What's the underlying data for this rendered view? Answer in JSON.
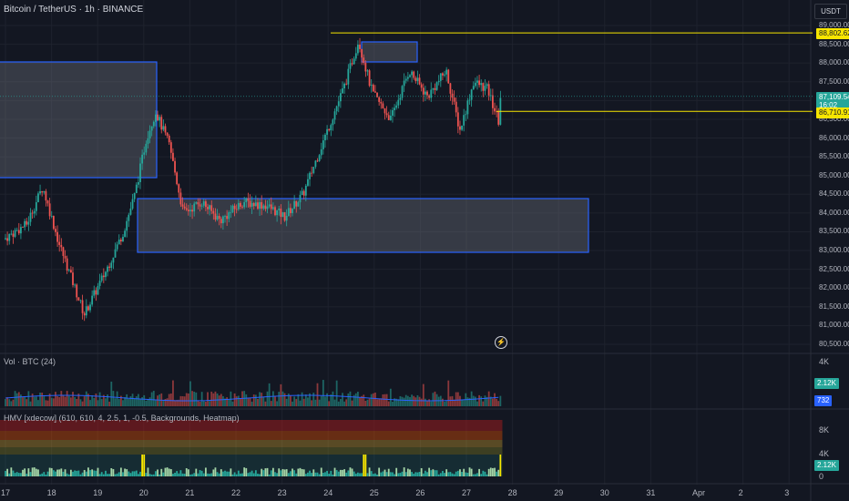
{
  "header": {
    "symbol_text": "Bitcoin / TetherUS · 1h · BINANCE"
  },
  "price_scale": {
    "currency": "USDT",
    "ticks": [
      "89,000.00",
      "88,500.00",
      "88,000.00",
      "87,500.00",
      "87,000.00",
      "86,500.00",
      "86,000.00",
      "85,500.00",
      "85,000.00",
      "84,500.00",
      "84,000.00",
      "83,500.00",
      "83,000.00",
      "82,500.00",
      "82,000.00",
      "81,500.00",
      "81,000.00",
      "80,500.00"
    ],
    "tick_values": [
      89000,
      88500,
      88000,
      87500,
      87000,
      86500,
      86000,
      85500,
      85000,
      84500,
      84000,
      83500,
      83000,
      82500,
      82000,
      81500,
      81000,
      80500
    ],
    "hline_label": "88,802.62",
    "hline_value": 88802.62,
    "last_price_label": "87,109.54",
    "last_price_value": 87109.54,
    "countdown": "16:02",
    "second_line_label": "86,710.91",
    "second_line_value": 86710.91
  },
  "volume_pane": {
    "label": "Vol · BTC (24)",
    "tick_4k": "4K",
    "last_value_label": "2.12K",
    "ma_value_label": "732"
  },
  "hmv_pane": {
    "label": "HMV [xdecow] (610, 610, 4, 2.5, 1, -0.5, Backgrounds, Heatmap)",
    "tick_8k": "8K",
    "tick_4k": "4K",
    "last_value_label": "2.12K",
    "tick_0": "0"
  },
  "time_axis": {
    "labels": [
      "17",
      "18",
      "19",
      "20",
      "21",
      "22",
      "23",
      "24",
      "25",
      "26",
      "27",
      "28",
      "29",
      "30",
      "31",
      "Apr",
      "2",
      "3"
    ]
  },
  "colors": {
    "background": "#131722",
    "up": "#26a69a",
    "down": "#ef5350",
    "hline": "#f7e600",
    "zone_border": "#2962ff",
    "zone_fill": "rgba(120,123,134,0.35)",
    "last_price_tag": "#26a69a",
    "ma_tag": "#2962ff"
  },
  "chart_data": {
    "type": "candlestick",
    "x_axis": "hourly time, March 17 to 27",
    "y_unit": "USDT",
    "ylim": [
      80400,
      89400
    ],
    "control_points": [
      {
        "day": 17.0,
        "price": 83300
      },
      {
        "day": 17.5,
        "price": 83700
      },
      {
        "day": 17.85,
        "price": 84700
      },
      {
        "day": 18.2,
        "price": 83200
      },
      {
        "day": 18.75,
        "price": 81300
      },
      {
        "day": 19.2,
        "price": 82400
      },
      {
        "day": 19.6,
        "price": 83500
      },
      {
        "day": 19.85,
        "price": 84500
      },
      {
        "day": 20.1,
        "price": 86000
      },
      {
        "day": 20.3,
        "price": 86700
      },
      {
        "day": 20.6,
        "price": 85800
      },
      {
        "day": 20.9,
        "price": 84000
      },
      {
        "day": 21.3,
        "price": 84300
      },
      {
        "day": 21.7,
        "price": 83800
      },
      {
        "day": 22.2,
        "price": 84300
      },
      {
        "day": 22.7,
        "price": 84200
      },
      {
        "day": 23.1,
        "price": 83900
      },
      {
        "day": 23.5,
        "price": 84500
      },
      {
        "day": 23.9,
        "price": 85800
      },
      {
        "day": 24.4,
        "price": 87400
      },
      {
        "day": 24.7,
        "price": 88600
      },
      {
        "day": 25.0,
        "price": 87200
      },
      {
        "day": 25.4,
        "price": 86500
      },
      {
        "day": 25.8,
        "price": 87800
      },
      {
        "day": 26.2,
        "price": 87100
      },
      {
        "day": 26.6,
        "price": 87800
      },
      {
        "day": 26.9,
        "price": 86200
      },
      {
        "day": 27.2,
        "price": 87500
      },
      {
        "day": 27.5,
        "price": 87300
      },
      {
        "day": 27.75,
        "price": 86400
      },
      {
        "day": 27.78,
        "price": 87100
      }
    ],
    "volume_ticks": [
      4000
    ],
    "hmv_ticks": [
      0,
      4000,
      8000
    ]
  }
}
